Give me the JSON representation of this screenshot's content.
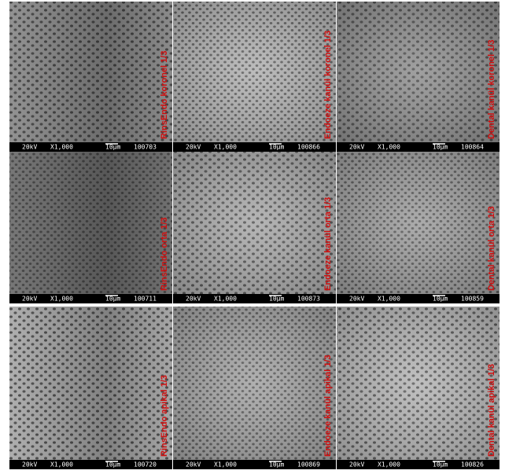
{
  "panels": [
    {
      "label": "RinsEndo koronel 1/3",
      "voltage": "20kV",
      "magnification": "X1,000",
      "scale": "10μm",
      "id": "100703"
    },
    {
      "label": "Endoeze kanül koronel 1/3",
      "voltage": "20kV",
      "magnification": "X1,000",
      "scale": "10μm",
      "id": "100866"
    },
    {
      "label": "Dental kanül koronel 1/3",
      "voltage": "20kV",
      "magnification": "X1,000",
      "scale": "10μm",
      "id": "100864"
    },
    {
      "label": "RinsEndo orta 1/3",
      "voltage": "20kV",
      "magnification": "X1,000",
      "scale": "10μm",
      "id": "100711"
    },
    {
      "label": "Endoeze kanül orta 1/3",
      "voltage": "20kV",
      "magnification": "X1,000",
      "scale": "10μm",
      "id": "100873"
    },
    {
      "label": "Dental kanül orta 1/3",
      "voltage": "20kV",
      "magnification": "X1,000",
      "scale": "10μm",
      "id": "100859"
    },
    {
      "label": "RinsEndo apikal 1/3",
      "voltage": "20kV",
      "magnification": "X1,000",
      "scale": "10μm",
      "id": "100720"
    },
    {
      "label": "Endoeze kanül apikal 1/3",
      "voltage": "20kV",
      "magnification": "X1,000",
      "scale": "10μm",
      "id": "100869"
    },
    {
      "label": "Dental kanül apikal 1/3",
      "voltage": "20kV",
      "magnification": "X1,000",
      "scale": "10μm",
      "id": "100826"
    }
  ]
}
